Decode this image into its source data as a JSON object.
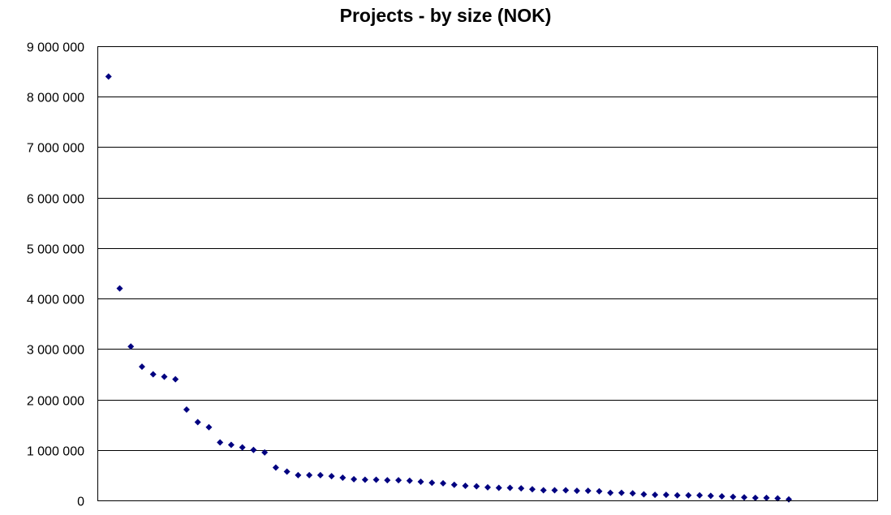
{
  "chart_data": {
    "type": "scatter",
    "title": "Projects - by size (NOK)",
    "xlabel": "",
    "ylabel": "",
    "ylim": [
      0,
      9000000
    ],
    "y_ticks": [
      0,
      1000000,
      2000000,
      3000000,
      4000000,
      5000000,
      6000000,
      7000000,
      8000000,
      9000000
    ],
    "y_tick_labels": [
      "0",
      "1 000 000",
      "2 000 000",
      "3 000 000",
      "4 000 000",
      "5 000 000",
      "6 000 000",
      "7 000 000",
      "8 000 000",
      "9 000 000"
    ],
    "grid": true,
    "marker_color": "#000080",
    "marker": "diamond",
    "xlim": [
      0,
      70
    ],
    "values": [
      8400000,
      4200000,
      3050000,
      2650000,
      2500000,
      2450000,
      2400000,
      1800000,
      1550000,
      1450000,
      1150000,
      1100000,
      1050000,
      1000000,
      950000,
      650000,
      570000,
      500000,
      500000,
      500000,
      480000,
      450000,
      420000,
      410000,
      410000,
      400000,
      400000,
      390000,
      370000,
      350000,
      340000,
      310000,
      290000,
      280000,
      260000,
      250000,
      250000,
      240000,
      220000,
      200000,
      200000,
      200000,
      190000,
      190000,
      180000,
      150000,
      150000,
      140000,
      120000,
      110000,
      110000,
      100000,
      100000,
      100000,
      90000,
      80000,
      70000,
      60000,
      50000,
      50000,
      40000,
      20000
    ]
  }
}
